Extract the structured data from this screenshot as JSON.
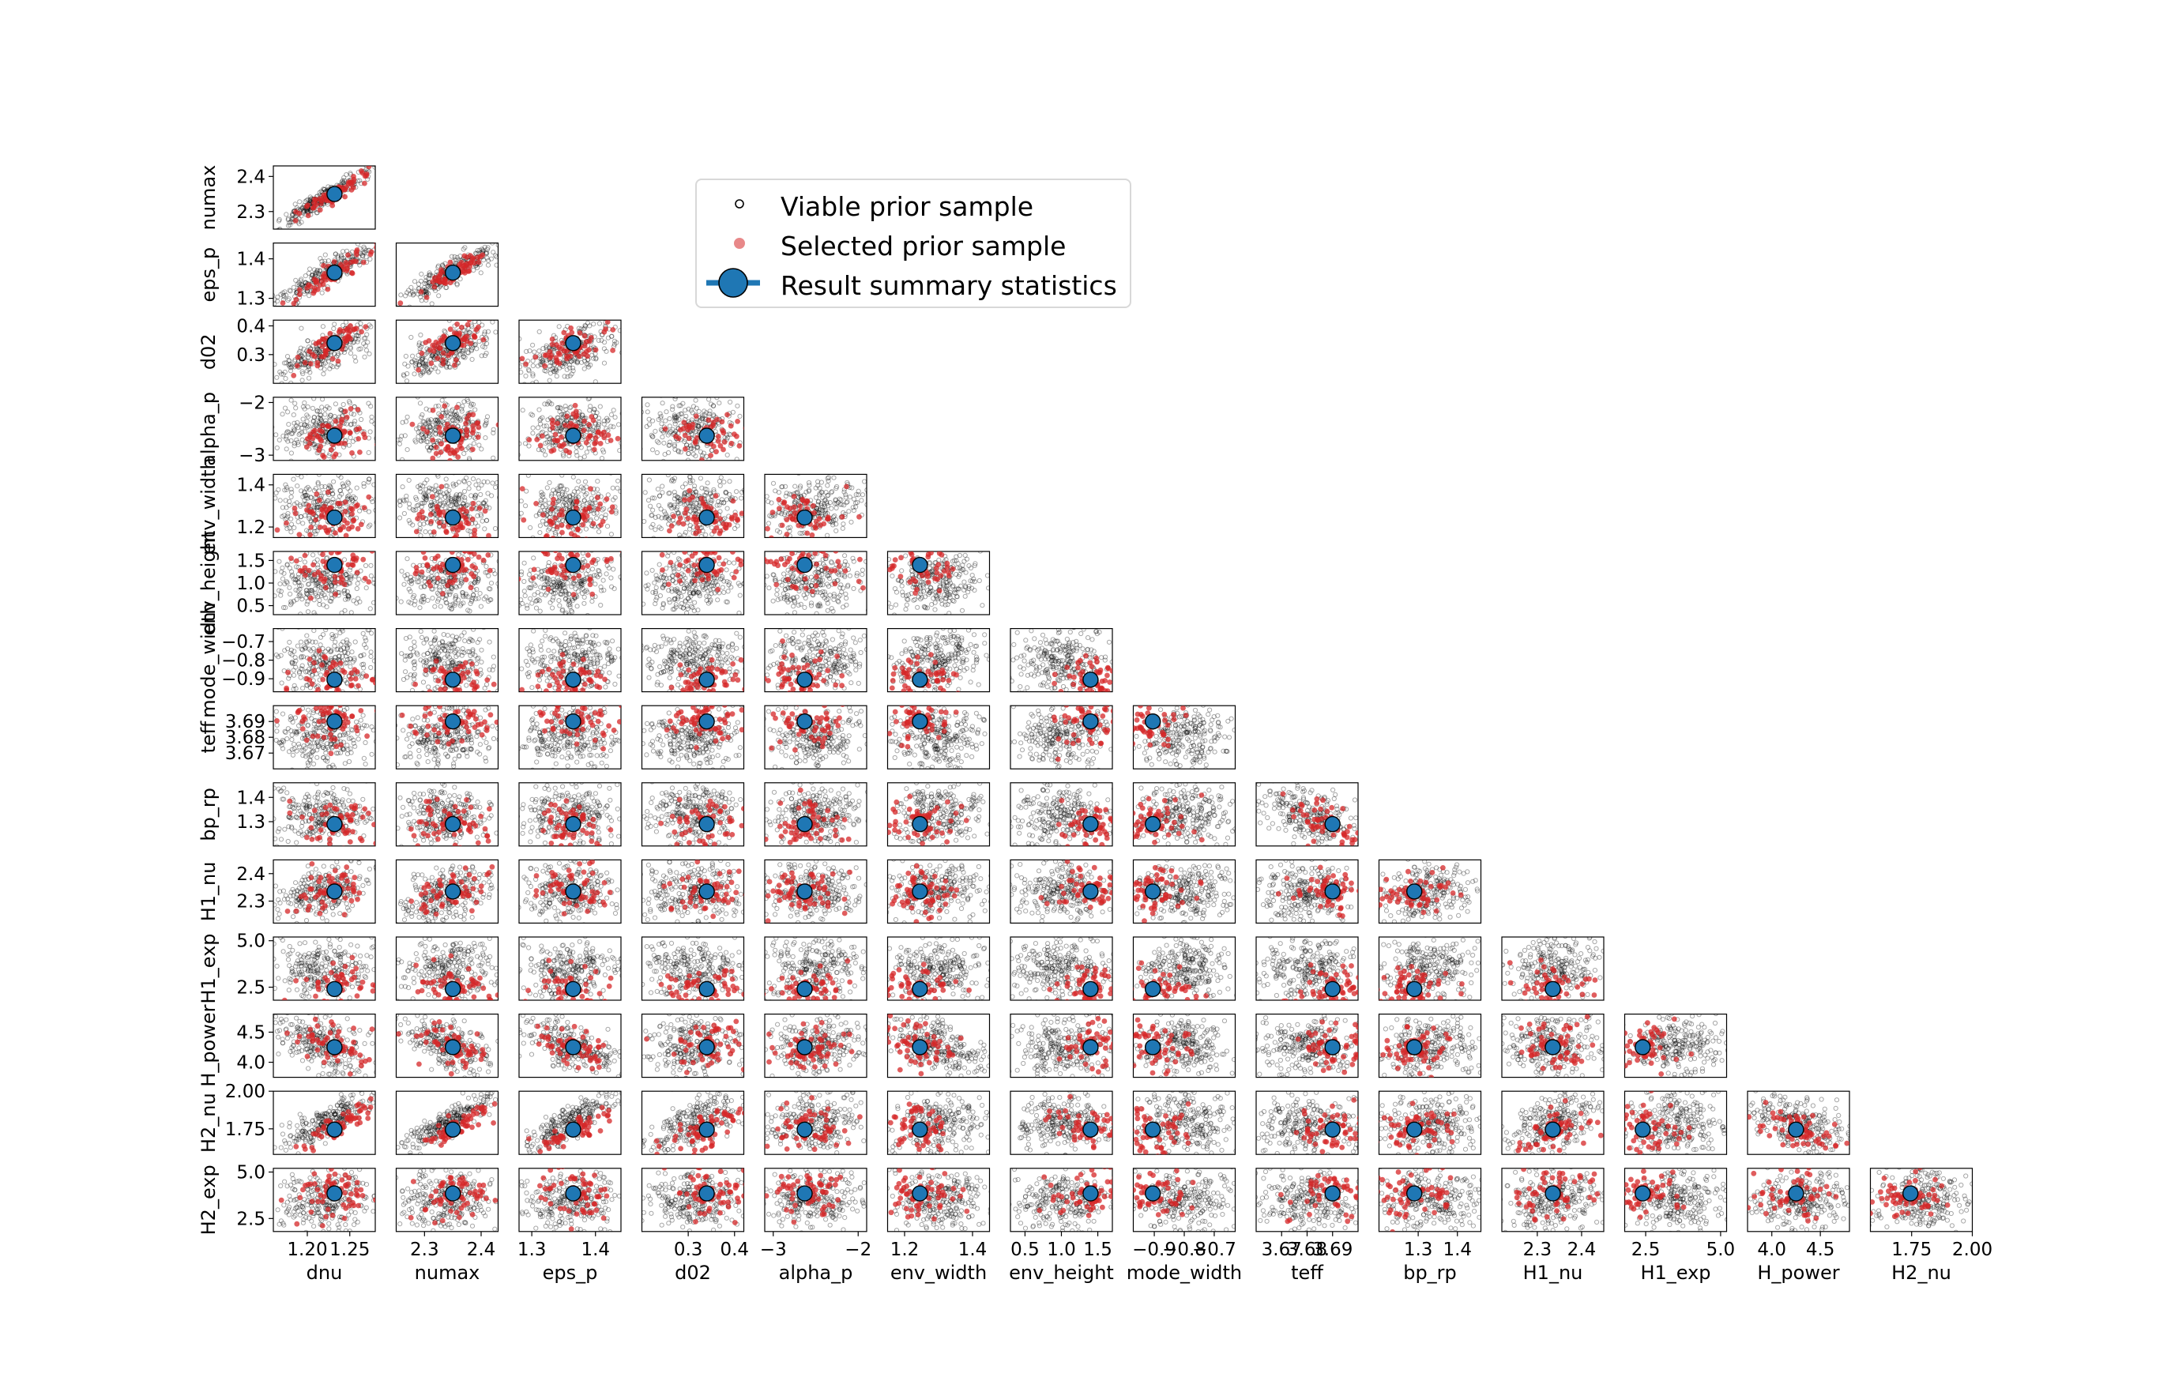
{
  "chart_data": {
    "type": "scatter",
    "variables": [
      "dnu",
      "numax",
      "eps_p",
      "d02",
      "alpha_p",
      "env_width",
      "env_height",
      "mode_width",
      "teff",
      "bp_rp",
      "H1_nu",
      "H1_exp",
      "H_power",
      "H2_nu",
      "H2_exp"
    ],
    "xlabels": [
      "dnu",
      "numax",
      "eps_p",
      "d02",
      "alpha_p",
      "env_width",
      "env_height",
      "mode_width",
      "teff",
      "bp_rp",
      "H1_nu",
      "H1_exp",
      "H_power",
      "H2_nu"
    ],
    "ylabels": [
      "numax",
      "eps_p",
      "d02",
      "alpha_p",
      "env_width",
      "env_height",
      "mode_width",
      "teff",
      "bp_rp",
      "H1_nu",
      "H1_exp",
      "H_power",
      "H2_nu",
      "H2_exp"
    ],
    "ranges": {
      "dnu": [
        1.16,
        1.28
      ],
      "numax": [
        2.25,
        2.43
      ],
      "eps_p": [
        1.28,
        1.44
      ],
      "d02": [
        0.2,
        0.42
      ],
      "alpha_p": [
        -3.1,
        -1.9
      ],
      "env_width": [
        1.15,
        1.45
      ],
      "env_height": [
        0.3,
        1.7
      ],
      "mode_width": [
        -0.97,
        -0.63
      ],
      "teff": [
        3.66,
        3.7
      ],
      "bp_rp": [
        1.2,
        1.46
      ],
      "H1_nu": [
        2.22,
        2.45
      ],
      "H1_exp": [
        1.8,
        5.2
      ],
      "H_power": [
        3.75,
        4.8
      ],
      "H2_nu": [
        1.58,
        2.0
      ],
      "H2_exp": [
        1.8,
        5.2
      ]
    },
    "summary": {
      "dnu": 1.232,
      "numax": 2.35,
      "eps_p": 1.365,
      "d02": 0.34,
      "alpha_p": -2.63,
      "env_width": 1.245,
      "env_height": 1.4,
      "mode_width": -0.905,
      "teff": 3.69,
      "bp_rp": 1.29,
      "H1_nu": 2.335,
      "H1_exp": 2.4,
      "H_power": 4.25,
      "H2_nu": 1.745,
      "H2_exp": 3.85
    },
    "xticks": {
      "dnu": [
        {
          "v": 1.2,
          "t": "1.20"
        },
        {
          "v": 1.25,
          "t": "1.25"
        }
      ],
      "numax": [
        {
          "v": 2.3,
          "t": "2.3"
        },
        {
          "v": 2.4,
          "t": "2.4"
        }
      ],
      "eps_p": [
        {
          "v": 1.3,
          "t": "1.3"
        },
        {
          "v": 1.4,
          "t": "1.4"
        }
      ],
      "d02": [
        {
          "v": 0.3,
          "t": "0.3"
        },
        {
          "v": 0.4,
          "t": "0.4"
        }
      ],
      "alpha_p": [
        {
          "v": -3,
          "t": "−3"
        },
        {
          "v": -2,
          "t": "−2"
        }
      ],
      "env_width": [
        {
          "v": 1.2,
          "t": "1.2"
        },
        {
          "v": 1.4,
          "t": "1.4"
        }
      ],
      "env_height": [
        {
          "v": 0.5,
          "t": "0.5"
        },
        {
          "v": 1.0,
          "t": "1.0"
        },
        {
          "v": 1.5,
          "t": "1.5"
        }
      ],
      "mode_width": [
        {
          "v": -0.9,
          "t": "−0.9"
        },
        {
          "v": -0.8,
          "t": "−0.8"
        },
        {
          "v": -0.7,
          "t": "−0.7"
        }
      ],
      "teff": [
        {
          "v": 3.67,
          "t": "3.67"
        },
        {
          "v": 3.68,
          "t": "3.68"
        },
        {
          "v": 3.69,
          "t": "3.69"
        }
      ],
      "bp_rp": [
        {
          "v": 1.3,
          "t": "1.3"
        },
        {
          "v": 1.4,
          "t": "1.4"
        }
      ],
      "H1_nu": [
        {
          "v": 2.3,
          "t": "2.3"
        },
        {
          "v": 2.4,
          "t": "2.4"
        }
      ],
      "H1_exp": [
        {
          "v": 2.5,
          "t": "2.5"
        },
        {
          "v": 5.0,
          "t": "5.0"
        }
      ],
      "H_power": [
        {
          "v": 4.0,
          "t": "4.0"
        },
        {
          "v": 4.5,
          "t": "4.5"
        }
      ],
      "H2_nu": [
        {
          "v": 1.75,
          "t": "1.75"
        },
        {
          "v": 2.0,
          "t": "2.00"
        }
      ]
    },
    "yticks": {
      "numax": [
        {
          "v": 2.3,
          "t": "2.3"
        },
        {
          "v": 2.4,
          "t": "2.4"
        }
      ],
      "eps_p": [
        {
          "v": 1.3,
          "t": "1.3"
        },
        {
          "v": 1.4,
          "t": "1.4"
        }
      ],
      "d02": [
        {
          "v": 0.3,
          "t": "0.3"
        },
        {
          "v": 0.4,
          "t": "0.4"
        }
      ],
      "alpha_p": [
        {
          "v": -3,
          "t": "−3"
        },
        {
          "v": -2,
          "t": "−2"
        }
      ],
      "env_width": [
        {
          "v": 1.2,
          "t": "1.2"
        },
        {
          "v": 1.4,
          "t": "1.4"
        }
      ],
      "env_height": [
        {
          "v": 0.5,
          "t": "0.5"
        },
        {
          "v": 1.0,
          "t": "1.0"
        },
        {
          "v": 1.5,
          "t": "1.5"
        }
      ],
      "mode_width": [
        {
          "v": -0.9,
          "t": "−0.9"
        },
        {
          "v": -0.8,
          "t": "−0.8"
        },
        {
          "v": -0.7,
          "t": "−0.7"
        }
      ],
      "teff": [
        {
          "v": 3.67,
          "t": "3.67"
        },
        {
          "v": 3.68,
          "t": "3.68"
        },
        {
          "v": 3.69,
          "t": "3.69"
        }
      ],
      "bp_rp": [
        {
          "v": 1.3,
          "t": "1.3"
        },
        {
          "v": 1.4,
          "t": "1.4"
        }
      ],
      "H1_nu": [
        {
          "v": 2.3,
          "t": "2.3"
        },
        {
          "v": 2.4,
          "t": "2.4"
        }
      ],
      "H1_exp": [
        {
          "v": 2.5,
          "t": "2.5"
        },
        {
          "v": 5.0,
          "t": "5.0"
        }
      ],
      "H_power": [
        {
          "v": 4.0,
          "t": "4.0"
        },
        {
          "v": 4.5,
          "t": "4.5"
        }
      ],
      "H2_nu": [
        {
          "v": 1.75,
          "t": "1.75"
        },
        {
          "v": 2.0,
          "t": "2.00"
        }
      ],
      "H2_exp": [
        {
          "v": 2.5,
          "t": "2.5"
        },
        {
          "v": 5.0,
          "t": "5.0"
        }
      ]
    },
    "colors": {
      "viable": "#000000",
      "selected": "#d62728",
      "summary": "#1f77b4"
    },
    "legend": {
      "placement": "upper-center",
      "entries": [
        "Viable prior sample",
        "Selected prior sample",
        "Result summary statistics"
      ]
    }
  }
}
